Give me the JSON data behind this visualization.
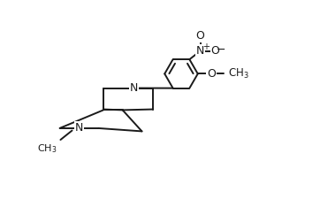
{
  "bg_color": "#ffffff",
  "line_color": "#1a1a1a",
  "lw": 1.4,
  "fig_width": 3.62,
  "fig_height": 2.34,
  "dpi": 100,
  "xlim": [
    -1.6,
    4.2
  ],
  "ylim": [
    -2.5,
    2.8
  ]
}
